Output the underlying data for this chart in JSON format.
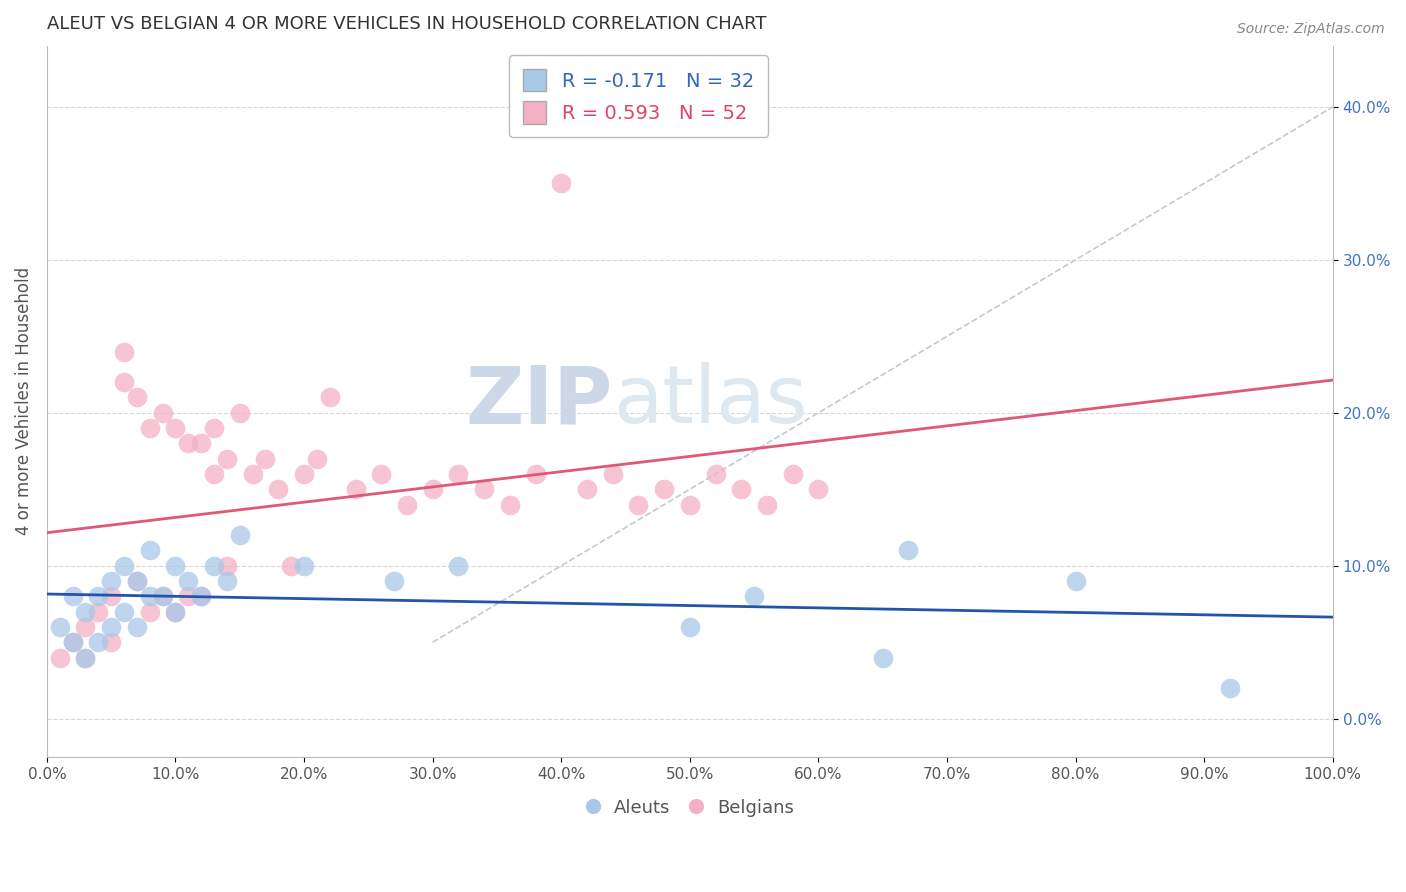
{
  "title": "ALEUT VS BELGIAN 4 OR MORE VEHICLES IN HOUSEHOLD CORRELATION CHART",
  "source_text": "Source: ZipAtlas.com",
  "ylabel": "4 or more Vehicles in Household",
  "xlim": [
    0.0,
    1.0
  ],
  "ylim": [
    -0.025,
    0.44
  ],
  "xticks": [
    0.0,
    0.1,
    0.2,
    0.3,
    0.4,
    0.5,
    0.6,
    0.7,
    0.8,
    0.9,
    1.0
  ],
  "xtick_labels": [
    "0.0%",
    "10.0%",
    "20.0%",
    "30.0%",
    "40.0%",
    "50.0%",
    "60.0%",
    "70.0%",
    "80.0%",
    "90.0%",
    "100.0%"
  ],
  "yticks": [
    0.0,
    0.1,
    0.2,
    0.3,
    0.4
  ],
  "ytick_labels": [
    "0.0%",
    "10.0%",
    "20.0%",
    "30.0%",
    "40.0%"
  ],
  "aleut_R": -0.171,
  "aleut_N": 32,
  "belgian_R": 0.593,
  "belgian_N": 52,
  "aleut_color": "#a8c8e8",
  "belgian_color": "#f4b0c4",
  "aleut_line_color": "#2255aa",
  "belgian_line_color": "#e05878",
  "diag_line_color": "#c8c8c8",
  "background_color": "#ffffff",
  "grid_color": "#d8d8d8",
  "watermark_color": "#ccd8e8",
  "aleut_x": [
    0.01,
    0.02,
    0.02,
    0.03,
    0.03,
    0.04,
    0.04,
    0.05,
    0.05,
    0.06,
    0.06,
    0.07,
    0.07,
    0.08,
    0.08,
    0.09,
    0.1,
    0.1,
    0.11,
    0.12,
    0.13,
    0.14,
    0.15,
    0.2,
    0.27,
    0.32,
    0.5,
    0.55,
    0.65,
    0.67,
    0.8,
    0.92
  ],
  "aleut_y": [
    0.06,
    0.05,
    0.08,
    0.04,
    0.07,
    0.05,
    0.08,
    0.06,
    0.09,
    0.07,
    0.1,
    0.06,
    0.09,
    0.08,
    0.11,
    0.08,
    0.07,
    0.1,
    0.09,
    0.08,
    0.1,
    0.09,
    0.12,
    0.1,
    0.09,
    0.1,
    0.06,
    0.08,
    0.04,
    0.11,
    0.09,
    0.02
  ],
  "belgian_x": [
    0.01,
    0.02,
    0.03,
    0.03,
    0.04,
    0.05,
    0.05,
    0.06,
    0.06,
    0.07,
    0.07,
    0.08,
    0.08,
    0.09,
    0.09,
    0.1,
    0.1,
    0.11,
    0.11,
    0.12,
    0.12,
    0.13,
    0.13,
    0.14,
    0.14,
    0.15,
    0.16,
    0.17,
    0.18,
    0.19,
    0.2,
    0.21,
    0.22,
    0.24,
    0.26,
    0.28,
    0.3,
    0.32,
    0.34,
    0.36,
    0.38,
    0.4,
    0.42,
    0.44,
    0.46,
    0.48,
    0.5,
    0.52,
    0.54,
    0.56,
    0.58,
    0.6
  ],
  "belgian_y": [
    0.04,
    0.05,
    0.06,
    0.04,
    0.07,
    0.05,
    0.08,
    0.22,
    0.24,
    0.21,
    0.09,
    0.07,
    0.19,
    0.2,
    0.08,
    0.07,
    0.19,
    0.18,
    0.08,
    0.18,
    0.08,
    0.19,
    0.16,
    0.1,
    0.17,
    0.2,
    0.16,
    0.17,
    0.15,
    0.1,
    0.16,
    0.17,
    0.21,
    0.15,
    0.16,
    0.14,
    0.15,
    0.16,
    0.15,
    0.14,
    0.16,
    0.35,
    0.15,
    0.16,
    0.14,
    0.15,
    0.14,
    0.16,
    0.15,
    0.14,
    0.16,
    0.15
  ]
}
